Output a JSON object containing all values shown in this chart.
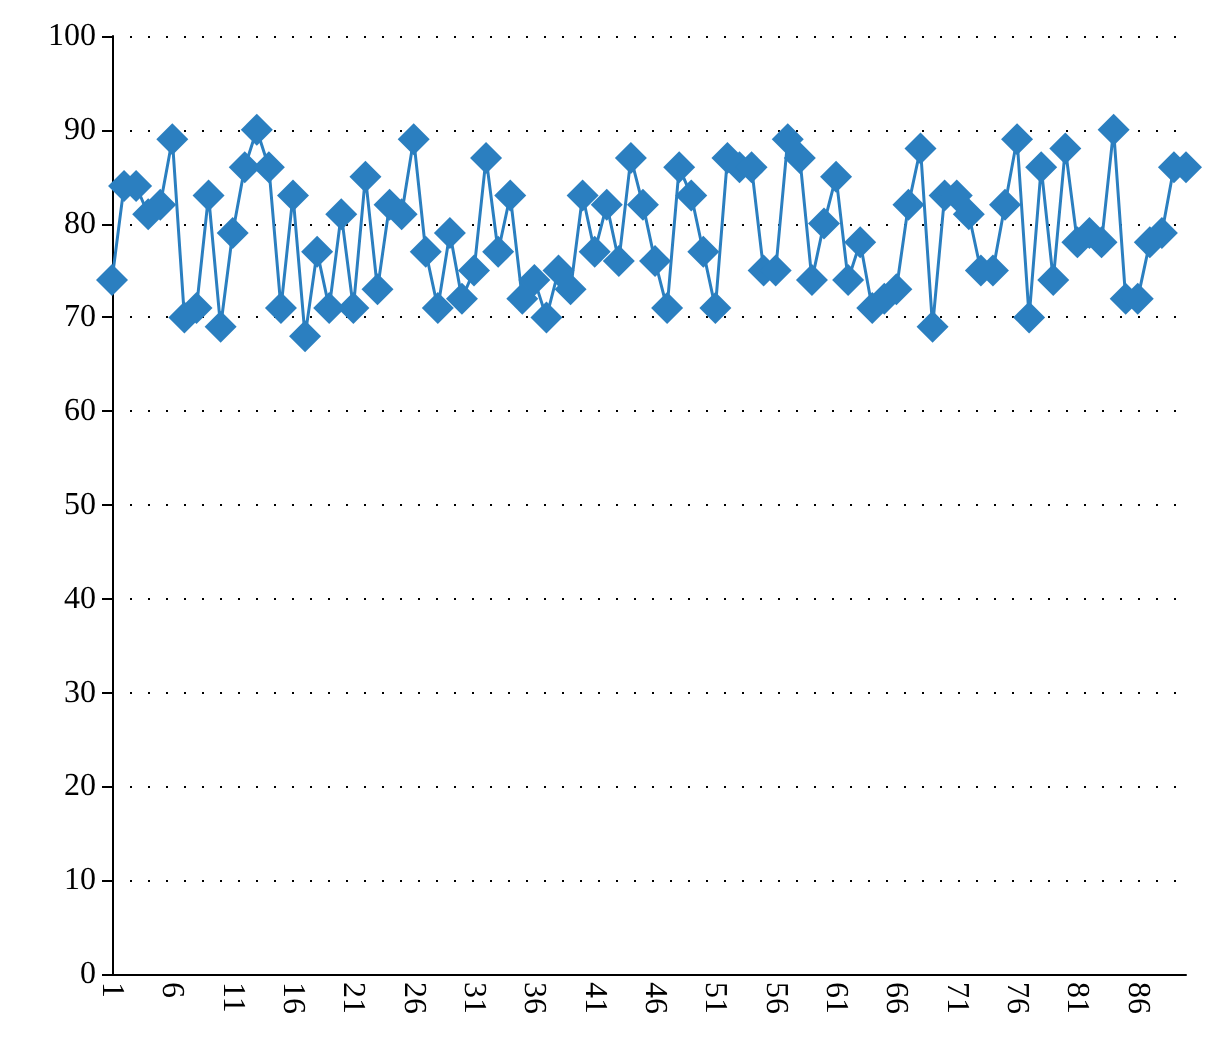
{
  "chart_data": {
    "type": "line",
    "categories": [
      "1",
      null,
      null,
      null,
      null,
      "6",
      null,
      null,
      null,
      null,
      "11",
      null,
      null,
      null,
      null,
      "16",
      null,
      null,
      null,
      null,
      "21",
      null,
      null,
      null,
      null,
      "26",
      null,
      null,
      null,
      null,
      "31",
      null,
      null,
      null,
      null,
      "36",
      null,
      null,
      null,
      null,
      "41",
      null,
      null,
      null,
      null,
      "46",
      null,
      null,
      null,
      null,
      "51",
      null,
      null,
      null,
      null,
      "56",
      null,
      null,
      null,
      null,
      "61",
      null,
      null,
      null,
      null,
      "66",
      null,
      null,
      null,
      null,
      "71",
      null,
      null,
      null,
      null,
      "76",
      null,
      null,
      null,
      null,
      "81",
      null,
      null,
      null,
      null,
      "86",
      null,
      null,
      null,
      null
    ],
    "series": [
      {
        "color": "#2b7fc0",
        "values": [
          74,
          84,
          84,
          81,
          82,
          89,
          70,
          71,
          83,
          69,
          79,
          86,
          90,
          86,
          71,
          83,
          68,
          77,
          71,
          81,
          71,
          85,
          73,
          82,
          81,
          89,
          77,
          71,
          79,
          72,
          75,
          87,
          77,
          83,
          72,
          74,
          70,
          75,
          73,
          83,
          77,
          82,
          76,
          87,
          82,
          76,
          71,
          86,
          83,
          77,
          71,
          87,
          86,
          86,
          75,
          75,
          89,
          87,
          74,
          80,
          85,
          74,
          78,
          71,
          72,
          73,
          82,
          88,
          69,
          83,
          83,
          81,
          75,
          75,
          82,
          89,
          70,
          86,
          74,
          88,
          78,
          79,
          78,
          90,
          72,
          72,
          78,
          79,
          86,
          86
        ]
      }
    ],
    "ylim": [
      0,
      100
    ],
    "yticks": [
      0,
      10,
      20,
      30,
      40,
      50,
      60,
      70,
      80,
      90,
      100
    ],
    "grid": "y",
    "marker": "diamond",
    "line_style": "solid"
  }
}
